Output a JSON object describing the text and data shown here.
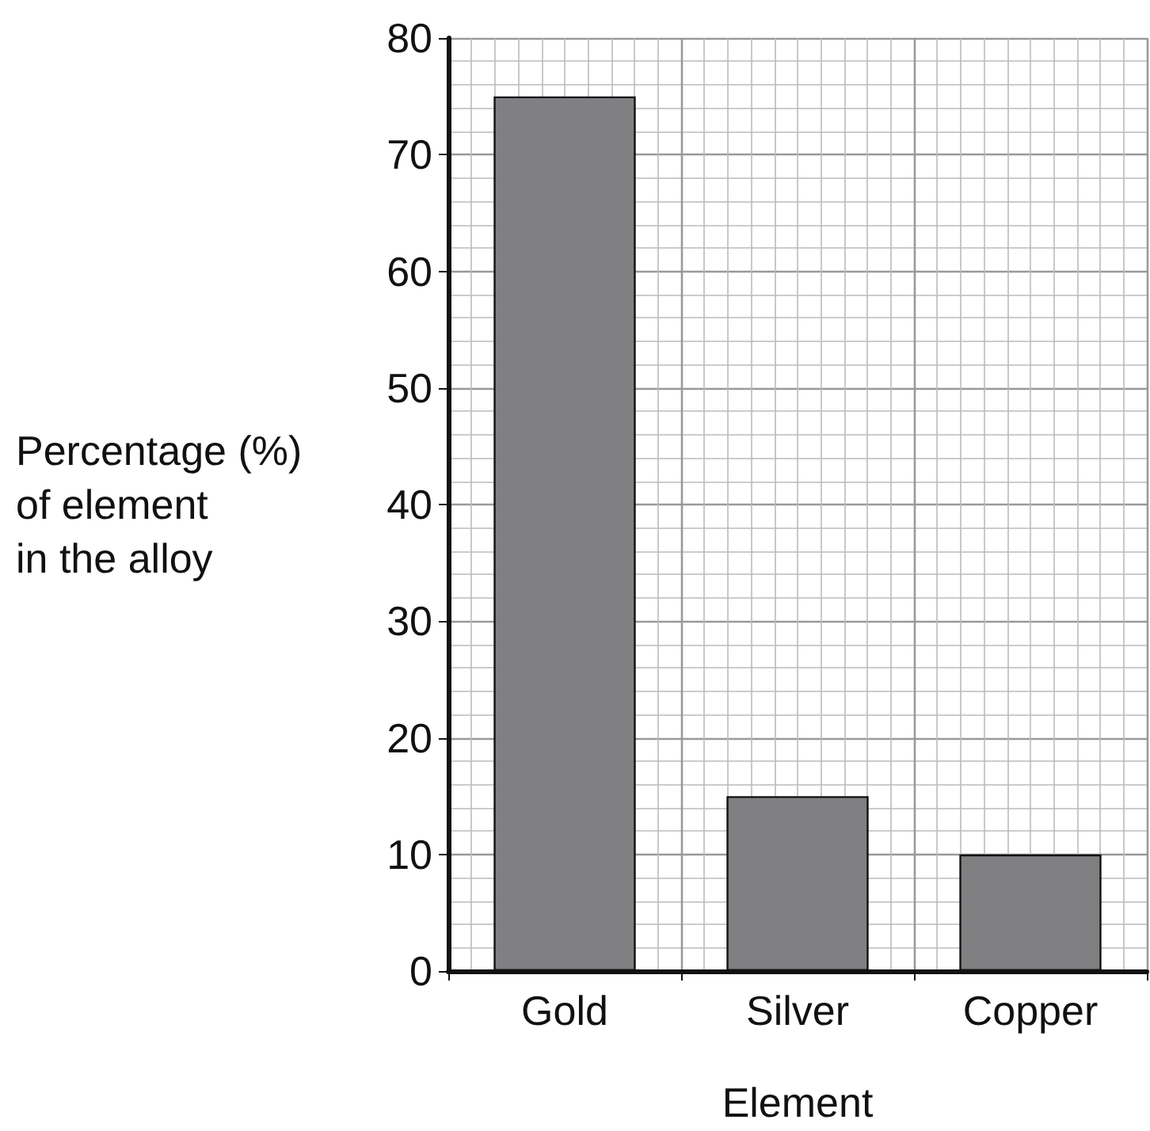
{
  "chart_data": {
    "type": "bar",
    "xlabel": "Element",
    "ylabel": "Percentage (%)\nof element\nin the alloy",
    "categories": [
      "Gold",
      "Silver",
      "Copper"
    ],
    "values": [
      75,
      15,
      10
    ],
    "color": "#808083",
    "ylim": [
      0,
      80
    ],
    "yticks": [
      0,
      10,
      20,
      30,
      40,
      50,
      60,
      70,
      80
    ],
    "grid": true
  }
}
